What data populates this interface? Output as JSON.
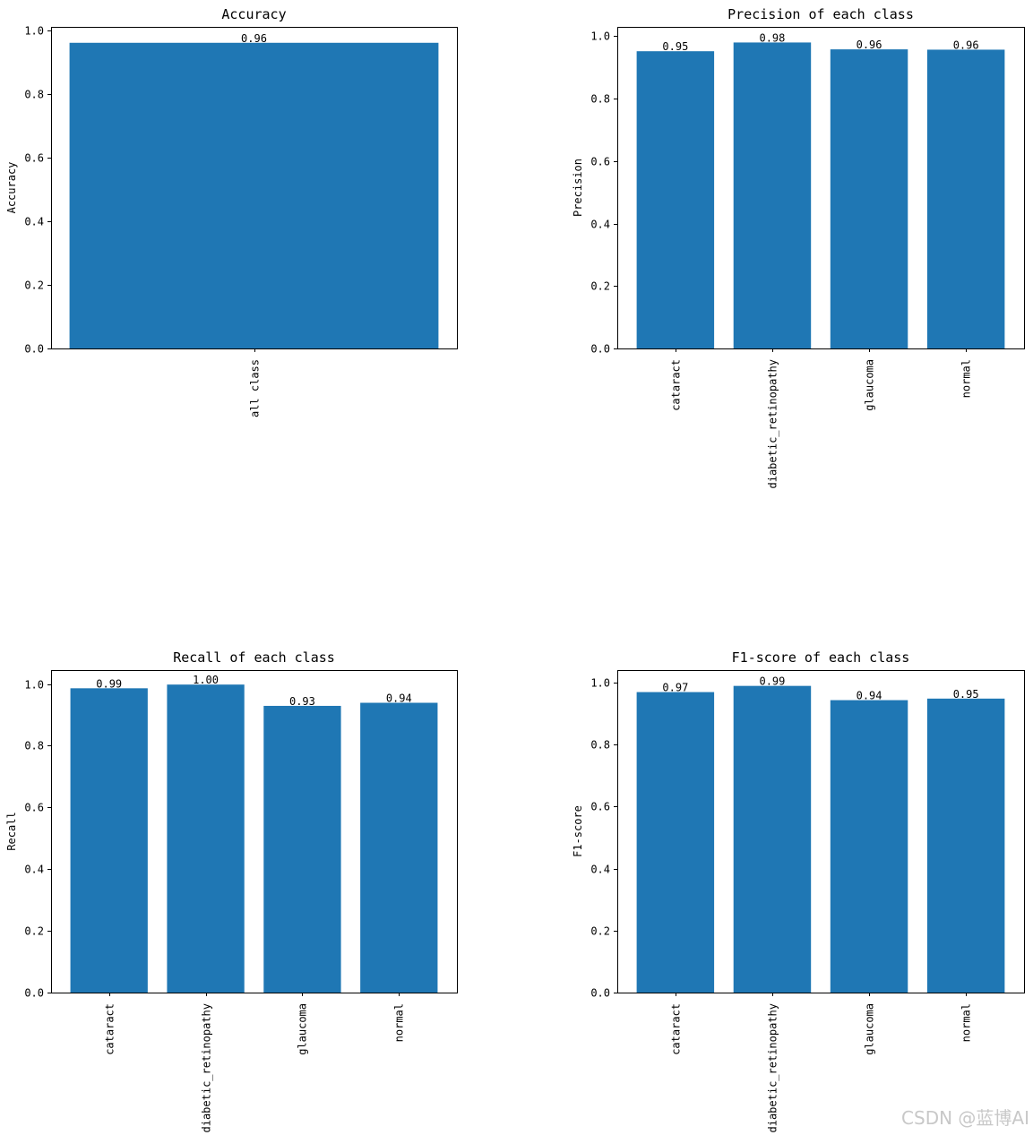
{
  "bar_color": "#1f77b4",
  "watermark": "CSDN @蓝博AI",
  "chart_data": [
    {
      "type": "bar",
      "title": "Accuracy",
      "ylabel": "Accuracy",
      "xlabel": "",
      "categories": [
        "all class"
      ],
      "values": [
        0.96
      ],
      "data_labels": [
        "0.96"
      ],
      "ylim": [
        0,
        1.01
      ],
      "yticks": [
        0.0,
        0.2,
        0.4,
        0.6,
        0.8,
        1.0
      ],
      "ytick_labels": [
        "0.0",
        "0.2",
        "0.4",
        "0.6",
        "0.8",
        "1.0"
      ],
      "grid": false
    },
    {
      "type": "bar",
      "title": "Precision of each class",
      "ylabel": "Precision",
      "xlabel": "",
      "categories": [
        "cataract",
        "diabetic_retinopathy",
        "glaucoma",
        "normal"
      ],
      "values": [
        0.952,
        0.98,
        0.958,
        0.957
      ],
      "data_labels": [
        "0.95",
        "0.98",
        "0.96",
        "0.96"
      ],
      "ylim": [
        0,
        1.03
      ],
      "yticks": [
        0.0,
        0.2,
        0.4,
        0.6,
        0.8,
        1.0
      ],
      "ytick_labels": [
        "0.0",
        "0.2",
        "0.4",
        "0.6",
        "0.8",
        "1.0"
      ],
      "grid": false
    },
    {
      "type": "bar",
      "title": "Recall of each class",
      "ylabel": "Recall",
      "xlabel": "",
      "categories": [
        "cataract",
        "diabetic_retinopathy",
        "glaucoma",
        "normal"
      ],
      "values": [
        0.986,
        0.998,
        0.929,
        0.939
      ],
      "data_labels": [
        "0.99",
        "1.00",
        "0.93",
        "0.94"
      ],
      "ylim": [
        0,
        1.045
      ],
      "yticks": [
        0.0,
        0.2,
        0.4,
        0.6,
        0.8,
        1.0
      ],
      "ytick_labels": [
        "0.0",
        "0.2",
        "0.4",
        "0.6",
        "0.8",
        "1.0"
      ],
      "grid": false
    },
    {
      "type": "bar",
      "title": "F1-score of each class",
      "ylabel": "F1-score",
      "xlabel": "",
      "categories": [
        "cataract",
        "diabetic_retinopathy",
        "glaucoma",
        "normal"
      ],
      "values": [
        0.969,
        0.989,
        0.943,
        0.948
      ],
      "data_labels": [
        "0.97",
        "0.99",
        "0.94",
        "0.95"
      ],
      "ylim": [
        0,
        1.04
      ],
      "yticks": [
        0.0,
        0.2,
        0.4,
        0.6,
        0.8,
        1.0
      ],
      "ytick_labels": [
        "0.0",
        "0.2",
        "0.4",
        "0.6",
        "0.8",
        "1.0"
      ],
      "grid": false
    }
  ]
}
